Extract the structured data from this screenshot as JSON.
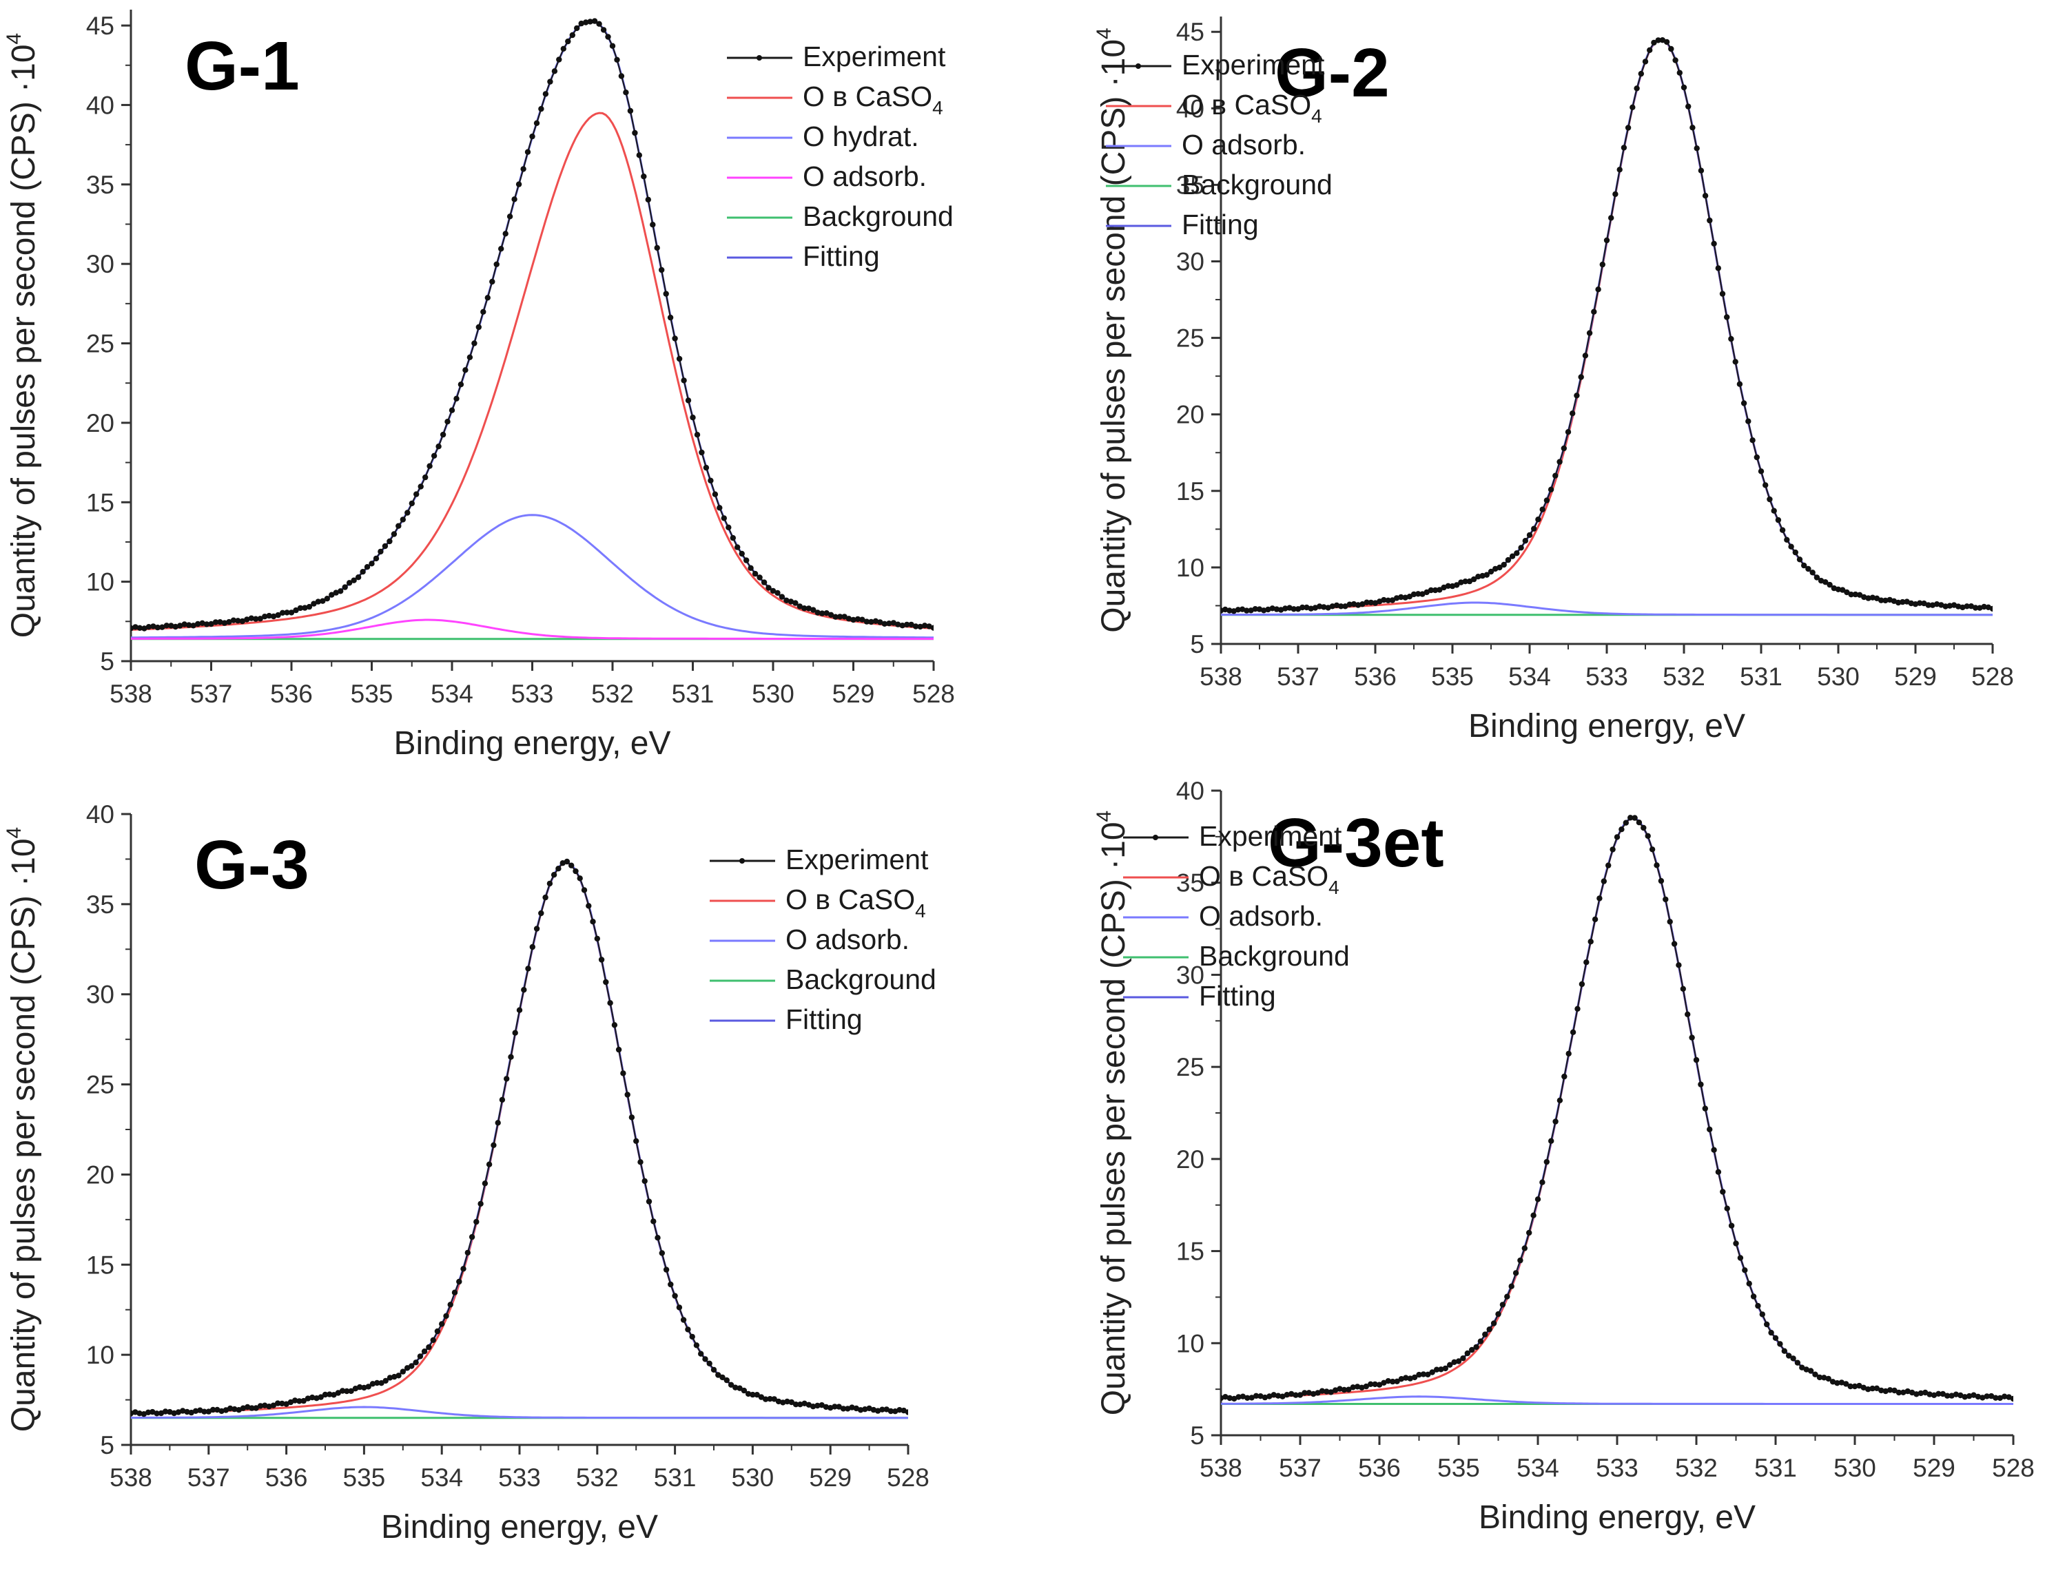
{
  "chart_data": [
    {
      "type": "line",
      "title": "G-1",
      "xlabel": "Binding energy, eV",
      "ylabel_main": "Quantity of pulses per second  (CPS) ·10",
      "ylabel_exp": "4",
      "xlim": [
        538,
        528
      ],
      "ylim": [
        5,
        46
      ],
      "xticks": [
        538,
        537,
        536,
        535,
        534,
        533,
        532,
        531,
        530,
        529,
        528
      ],
      "yticks": [
        5,
        10,
        15,
        20,
        25,
        30,
        35,
        40,
        45
      ],
      "legend_position": "top-right",
      "background": 6.4,
      "series": [
        {
          "name": "Experiment",
          "label": "Experiment",
          "color": "#1a1a1a",
          "role": "experiment"
        },
        {
          "name": "O в CaSO4",
          "label": "O в CaSO",
          "sub": "4",
          "color": "#ef4f4f",
          "role": "peak",
          "center": 532.15,
          "height": 33.1,
          "wl": 1.25,
          "wr": 0.95,
          "eta": 0.4
        },
        {
          "name": "O hydrat.",
          "label": "O hydrat.",
          "color": "#7a7aff",
          "role": "peak",
          "center": 533.0,
          "height": 7.8,
          "wl": 1.2,
          "wr": 1.2,
          "eta": 0.2
        },
        {
          "name": "O adsorb.",
          "label": "O adsorb.",
          "color": "#ff44ff",
          "role": "peak",
          "center": 534.3,
          "height": 1.2,
          "wl": 0.9,
          "wr": 0.9,
          "eta": 0.2
        },
        {
          "name": "Background",
          "label": "Background",
          "color": "#3fbf6f",
          "role": "background"
        },
        {
          "name": "Fitting",
          "label": "Fitting",
          "color": "#5a5ae0",
          "role": "fitting"
        }
      ]
    },
    {
      "type": "line",
      "title": "G-2",
      "xlabel": "Binding energy, eV",
      "ylabel_main": "Quantity of pulses per second  (CPS) ·10",
      "ylabel_exp": "4",
      "xlim": [
        538,
        528
      ],
      "ylim": [
        5,
        46
      ],
      "xticks": [
        538,
        537,
        536,
        535,
        534,
        533,
        532,
        531,
        530,
        529,
        528
      ],
      "yticks": [
        5,
        10,
        15,
        20,
        25,
        30,
        35,
        40,
        45
      ],
      "legend_position": "top-right",
      "background": 6.9,
      "series": [
        {
          "name": "Experiment",
          "label": "Experiment",
          "color": "#1a1a1a",
          "role": "experiment"
        },
        {
          "name": "O в CaSO4",
          "label": "O в CaSO",
          "sub": "4",
          "color": "#ef4f4f",
          "role": "peak",
          "center": 532.3,
          "height": 37.6,
          "wl": 0.9,
          "wr": 0.88,
          "eta": 0.3
        },
        {
          "name": "O adsorb.",
          "label": "O adsorb.",
          "color": "#7a7aff",
          "role": "peak",
          "center": 534.7,
          "height": 0.8,
          "wl": 0.9,
          "wr": 0.9,
          "eta": 0.2
        },
        {
          "name": "Background",
          "label": "Background",
          "color": "#3fbf6f",
          "role": "background"
        },
        {
          "name": "Fitting",
          "label": "Fitting",
          "color": "#5a5ae0",
          "role": "fitting"
        }
      ]
    },
    {
      "type": "line",
      "title": "G-3",
      "xlabel": "Binding energy, eV",
      "ylabel_main": "Quantity of pulses per second  (CPS) ·10",
      "ylabel_exp": "4",
      "xlim": [
        538,
        528
      ],
      "ylim": [
        5,
        40
      ],
      "xticks": [
        538,
        537,
        536,
        535,
        534,
        533,
        532,
        531,
        530,
        529,
        528
      ],
      "yticks": [
        5,
        10,
        15,
        20,
        25,
        30,
        35,
        40
      ],
      "legend_position": "top-right",
      "background": 6.5,
      "series": [
        {
          "name": "Experiment",
          "label": "Experiment",
          "color": "#1a1a1a",
          "role": "experiment"
        },
        {
          "name": "O в CaSO4",
          "label": "O в CaSO",
          "sub": "4",
          "color": "#ef4f4f",
          "role": "peak",
          "center": 532.4,
          "height": 30.8,
          "wl": 0.92,
          "wr": 0.9,
          "eta": 0.3
        },
        {
          "name": "O adsorb.",
          "label": "O adsorb.",
          "color": "#7a7aff",
          "role": "peak",
          "center": 535.0,
          "height": 0.6,
          "wl": 0.9,
          "wr": 0.9,
          "eta": 0.2
        },
        {
          "name": "Background",
          "label": "Background",
          "color": "#3fbf6f",
          "role": "background"
        },
        {
          "name": "Fitting",
          "label": "Fitting",
          "color": "#5a5ae0",
          "role": "fitting"
        }
      ]
    },
    {
      "type": "line",
      "title": "G-3et",
      "xlabel": "Binding energy, eV",
      "ylabel_main": "Quantity of pulses per second  (CPS) ·10",
      "ylabel_exp": "4",
      "xlim": [
        538,
        528
      ],
      "ylim": [
        5,
        40
      ],
      "xticks": [
        538,
        537,
        536,
        535,
        534,
        533,
        532,
        531,
        530,
        529,
        528
      ],
      "yticks": [
        5,
        10,
        15,
        20,
        25,
        30,
        35,
        40
      ],
      "legend_position": "top-right",
      "background": 6.7,
      "series": [
        {
          "name": "Experiment",
          "label": "Experiment",
          "color": "#1a1a1a",
          "role": "experiment"
        },
        {
          "name": "O в CaSO4",
          "label": "O в CaSO",
          "sub": "4",
          "color": "#ef4f4f",
          "role": "peak",
          "center": 532.8,
          "height": 31.8,
          "wl": 0.95,
          "wr": 0.92,
          "eta": 0.3
        },
        {
          "name": "O adsorb.",
          "label": "O adsorb.",
          "color": "#7a7aff",
          "role": "peak",
          "center": 535.5,
          "height": 0.4,
          "wl": 0.9,
          "wr": 0.9,
          "eta": 0.2
        },
        {
          "name": "Background",
          "label": "Background",
          "color": "#3fbf6f",
          "role": "background"
        },
        {
          "name": "Fitting",
          "label": "Fitting",
          "color": "#5a5ae0",
          "role": "fitting"
        }
      ]
    }
  ]
}
